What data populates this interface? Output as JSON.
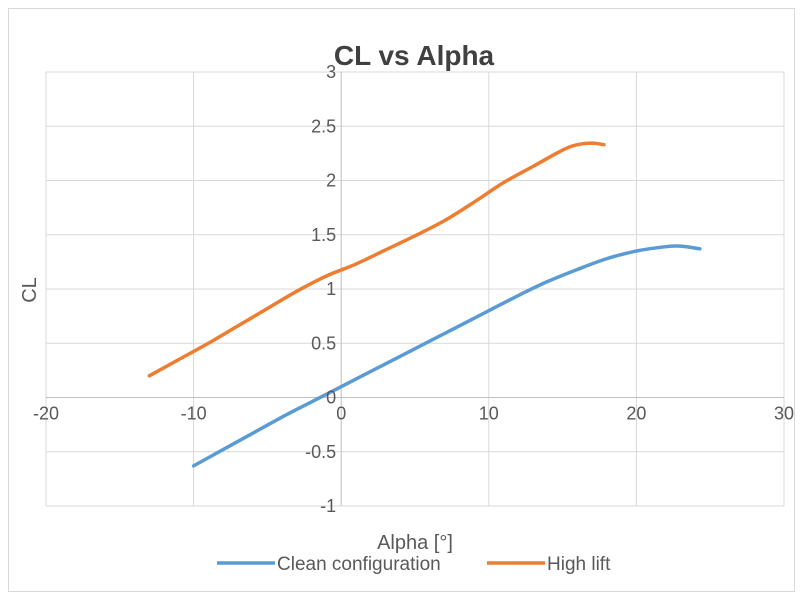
{
  "chart_data": {
    "type": "line",
    "title": "CL vs Alpha",
    "xlabel": "Alpha [°]",
    "ylabel": "CL",
    "xlim": [
      -20,
      30
    ],
    "ylim": [
      -1,
      3
    ],
    "x_ticks": [
      "-20",
      "-10",
      "0",
      "10",
      "20",
      "30"
    ],
    "y_ticks": [
      "-1",
      "-0.5",
      "0",
      "0.5",
      "1",
      "1.5",
      "2",
      "2.5",
      "3"
    ],
    "grid": true,
    "legend_position": "bottom",
    "series": [
      {
        "name": "Clean configuration",
        "color": "#5b9bd5",
        "points": [
          [
            -10,
            -0.63
          ],
          [
            -8,
            -0.48
          ],
          [
            -6,
            -0.33
          ],
          [
            -4,
            -0.18
          ],
          [
            -2,
            -0.04
          ],
          [
            0,
            0.1
          ],
          [
            2,
            0.24
          ],
          [
            4,
            0.38
          ],
          [
            6,
            0.52
          ],
          [
            8,
            0.66
          ],
          [
            10,
            0.8
          ],
          [
            12,
            0.94
          ],
          [
            14,
            1.07
          ],
          [
            16,
            1.18
          ],
          [
            18,
            1.28
          ],
          [
            20,
            1.35
          ],
          [
            22,
            1.39
          ],
          [
            23,
            1.395
          ],
          [
            24.3,
            1.37
          ]
        ]
      },
      {
        "name": "High lift",
        "color": "#ed7d31",
        "points": [
          [
            -13,
            0.2
          ],
          [
            -11,
            0.35
          ],
          [
            -9,
            0.5
          ],
          [
            -7,
            0.66
          ],
          [
            -5,
            0.82
          ],
          [
            -3,
            0.98
          ],
          [
            -1,
            1.12
          ],
          [
            1,
            1.23
          ],
          [
            3,
            1.36
          ],
          [
            5,
            1.49
          ],
          [
            7,
            1.63
          ],
          [
            9,
            1.8
          ],
          [
            11,
            1.98
          ],
          [
            13,
            2.13
          ],
          [
            15,
            2.28
          ],
          [
            16,
            2.33
          ],
          [
            17,
            2.345
          ],
          [
            17.8,
            2.33
          ]
        ]
      }
    ]
  }
}
